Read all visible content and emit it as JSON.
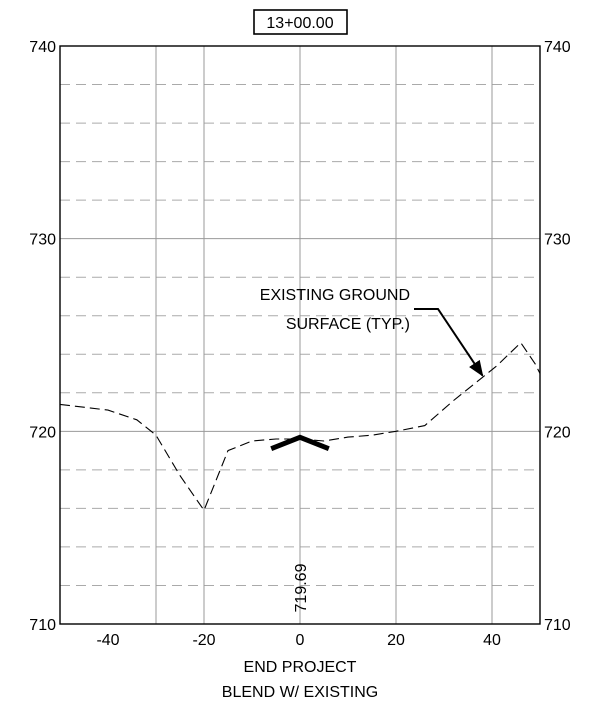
{
  "chart_data": {
    "type": "line",
    "station": "13+00.00",
    "xlim": [
      -50,
      50
    ],
    "ylim": [
      710,
      740
    ],
    "x_ticks": [
      -40,
      -20,
      0,
      20,
      40
    ],
    "x_tick_labels": [
      "-40",
      "-20",
      "0",
      "20",
      "40"
    ],
    "y_ticks": [
      710,
      720,
      730,
      740
    ],
    "y_tick_labels": [
      "710",
      "720",
      "730",
      "740"
    ],
    "x_grid_major": [
      -30,
      -20,
      0,
      20,
      40
    ],
    "y_grid_minor": [
      712,
      714,
      716,
      718,
      722,
      724,
      726,
      728,
      732,
      734,
      736,
      738
    ],
    "existing_ground": {
      "x": [
        -50,
        -40,
        -34,
        -30,
        -25,
        -20,
        -15,
        -10,
        -5,
        0,
        5,
        10,
        15,
        20,
        26,
        32,
        38,
        41,
        46,
        49,
        50
      ],
      "y": [
        721.4,
        721.1,
        720.6,
        719.8,
        717.7,
        715.9,
        719.0,
        719.5,
        719.6,
        719.6,
        719.5,
        719.7,
        719.8,
        720.0,
        720.3,
        721.6,
        722.8,
        723.4,
        724.6,
        723.5,
        723.0
      ]
    },
    "proposed_section": {
      "x": [
        -6,
        0,
        6
      ],
      "y": [
        719.1,
        719.69,
        719.1
      ]
    },
    "centerline_elevation": "719.69",
    "annotation": {
      "lines": [
        "EXISTING GROUND",
        "SURFACE (TYP.)"
      ],
      "target": [
        38,
        722.8
      ]
    },
    "footer": [
      "END PROJECT",
      "BLEND W/ EXISTING"
    ]
  }
}
